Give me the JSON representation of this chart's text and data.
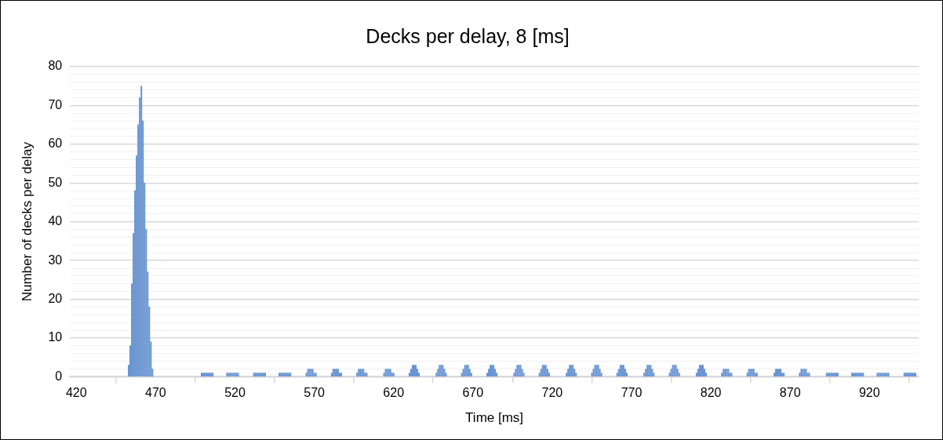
{
  "chart_data": {
    "type": "bar",
    "title": "Decks per delay, 8 [ms]",
    "xlabel": "Time [ms]",
    "ylabel": "Number of decks per delay",
    "color": "#6a95d2",
    "grid": "y",
    "legend": false,
    "x": [
      453,
      454,
      455,
      456,
      457,
      458,
      459,
      460,
      461,
      462,
      463,
      464,
      465,
      466,
      467,
      468,
      499,
      500,
      501,
      502,
      503,
      504,
      505,
      506,
      515,
      516,
      517,
      518,
      519,
      520,
      521,
      522,
      532,
      533,
      534,
      535,
      536,
      537,
      538,
      539,
      548,
      549,
      550,
      551,
      552,
      553,
      554,
      555,
      565,
      566,
      567,
      568,
      569,
      570,
      571,
      581,
      582,
      583,
      584,
      585,
      586,
      587,
      597,
      598,
      599,
      600,
      601,
      602,
      603,
      614,
      615,
      616,
      617,
      618,
      619,
      620,
      630,
      631,
      632,
      633,
      634,
      635,
      636,
      647,
      648,
      649,
      650,
      651,
      652,
      653,
      663,
      664,
      665,
      666,
      667,
      668,
      669,
      679,
      680,
      681,
      682,
      683,
      684,
      685,
      696,
      697,
      698,
      699,
      700,
      701,
      702,
      712,
      713,
      714,
      715,
      716,
      717,
      718,
      729,
      730,
      731,
      732,
      733,
      734,
      735,
      745,
      746,
      747,
      748,
      749,
      750,
      751,
      761,
      762,
      763,
      764,
      765,
      766,
      767,
      778,
      779,
      780,
      781,
      782,
      783,
      784,
      794,
      795,
      796,
      797,
      798,
      799,
      800,
      811,
      812,
      813,
      814,
      815,
      816,
      817,
      827,
      828,
      829,
      830,
      831,
      832,
      833,
      843,
      844,
      845,
      846,
      847,
      848,
      849,
      860,
      861,
      862,
      863,
      864,
      865,
      866,
      876,
      877,
      878,
      879,
      880,
      881,
      882,
      893,
      894,
      895,
      896,
      897,
      898,
      899,
      900,
      909,
      910,
      911,
      912,
      913,
      914,
      915,
      916,
      925,
      926,
      927,
      928,
      929,
      930,
      931,
      932,
      942,
      943,
      944,
      945,
      946,
      947,
      948,
      949
    ],
    "values": [
      3,
      8,
      24,
      37,
      48,
      57,
      65,
      72,
      75,
      66,
      50,
      38,
      27,
      18,
      9,
      2,
      1,
      1,
      1,
      1,
      1,
      1,
      1,
      1,
      1,
      1,
      1,
      1,
      1,
      1,
      1,
      1,
      1,
      1,
      1,
      1,
      1,
      1,
      1,
      1,
      1,
      1,
      1,
      1,
      1,
      1,
      1,
      1,
      1,
      2,
      2,
      2,
      2,
      1,
      1,
      1,
      2,
      2,
      2,
      2,
      1,
      1,
      1,
      2,
      2,
      2,
      2,
      1,
      1,
      1,
      2,
      2,
      2,
      2,
      1,
      1,
      1,
      2,
      3,
      3,
      3,
      2,
      1,
      1,
      2,
      3,
      3,
      3,
      2,
      1,
      1,
      2,
      3,
      3,
      3,
      2,
      1,
      1,
      2,
      3,
      3,
      3,
      2,
      1,
      1,
      2,
      3,
      3,
      3,
      2,
      1,
      1,
      2,
      3,
      3,
      3,
      2,
      1,
      1,
      2,
      3,
      3,
      3,
      2,
      1,
      1,
      2,
      3,
      3,
      3,
      2,
      1,
      1,
      2,
      3,
      3,
      3,
      2,
      1,
      1,
      2,
      3,
      3,
      3,
      2,
      1,
      1,
      2,
      3,
      3,
      3,
      2,
      1,
      1,
      2,
      3,
      3,
      3,
      2,
      1,
      1,
      2,
      2,
      2,
      2,
      1,
      1,
      1,
      2,
      2,
      2,
      2,
      1,
      1,
      1,
      2,
      2,
      2,
      2,
      1,
      1,
      1,
      2,
      2,
      2,
      2,
      1,
      1,
      1,
      1,
      1,
      1,
      1,
      1,
      1,
      1,
      1,
      1,
      1,
      1,
      1,
      1,
      1,
      1,
      1,
      1,
      1,
      1,
      1,
      1,
      1,
      1,
      1,
      1,
      1,
      1,
      1,
      1,
      1,
      1
    ],
    "xlim": [
      416,
      951
    ],
    "xticks": [
      420,
      470,
      520,
      570,
      620,
      670,
      720,
      770,
      820,
      870,
      920
    ],
    "ylim": [
      0,
      80
    ],
    "yticks": [
      0,
      {
        "value": 2,
        "label": null
      },
      {
        "value": 4,
        "label": null
      },
      {
        "value": 6,
        "label": null
      },
      {
        "value": 8,
        "label": null
      },
      10,
      {
        "value": 12,
        "label": null
      },
      {
        "value": 14,
        "label": null
      },
      {
        "value": 16,
        "label": null
      },
      {
        "value": 18,
        "label": null
      },
      20,
      {
        "value": 22,
        "label": null
      },
      {
        "value": 24,
        "label": null
      },
      {
        "value": 26,
        "label": null
      },
      {
        "value": 28,
        "label": null
      },
      30,
      {
        "value": 32,
        "label": null
      },
      {
        "value": 34,
        "label": null
      },
      {
        "value": 36,
        "label": null
      },
      {
        "value": 38,
        "label": null
      },
      40,
      {
        "value": 42,
        "label": null
      },
      {
        "value": 44,
        "label": null
      },
      {
        "value": 46,
        "label": null
      },
      {
        "value": 48,
        "label": null
      },
      50,
      {
        "value": 52,
        "label": null
      },
      {
        "value": 54,
        "label": null
      },
      {
        "value": 56,
        "label": null
      },
      {
        "value": 58,
        "label": null
      },
      60,
      {
        "value": 62,
        "label": null
      },
      {
        "value": 64,
        "label": null
      },
      {
        "value": 66,
        "label": null
      },
      {
        "value": 68,
        "label": null
      },
      70,
      {
        "value": 72,
        "label": null
      },
      {
        "value": 74,
        "label": null
      },
      {
        "value": 76,
        "label": null
      },
      {
        "value": 78,
        "label": null
      },
      80
    ]
  }
}
